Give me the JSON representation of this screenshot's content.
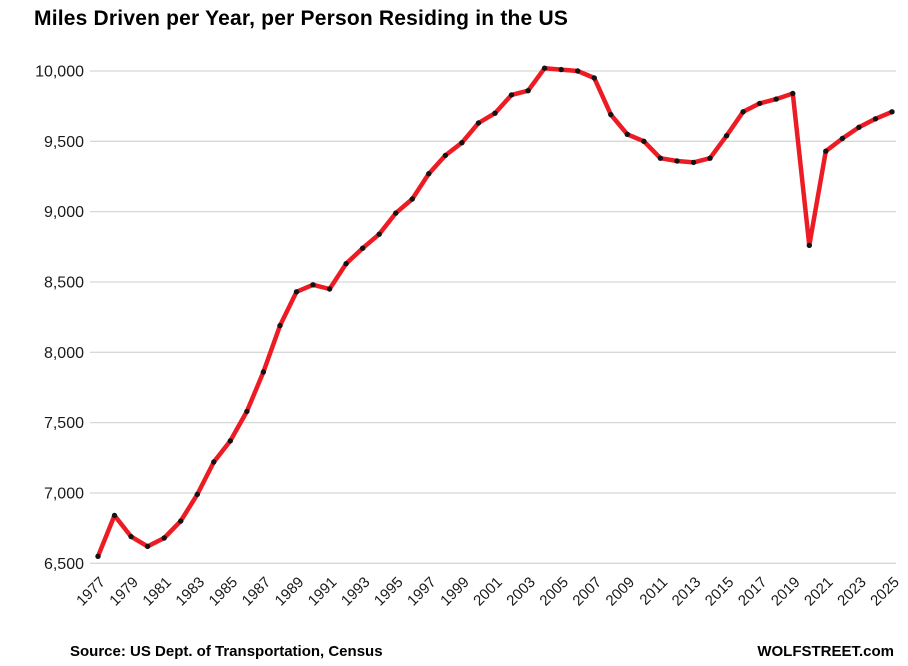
{
  "title": "Miles Driven per Year, per Person Residing in the US",
  "footer": {
    "source": "Source: US Dept. of Transportation, Census",
    "brand": "WOLFSTREET.com"
  },
  "colors": {
    "line": "#ed1c24",
    "marker": "#141414",
    "grid": "#d8d8d8",
    "axis_text": "#1a1a1a"
  },
  "chart_data": {
    "type": "line",
    "title": "Miles Driven per Year, per Person Residing in the US",
    "xlabel": "",
    "ylabel": "",
    "ylim": [
      6500,
      10000
    ],
    "yticks": [
      6500,
      7000,
      7500,
      8000,
      8500,
      9000,
      9500,
      10000
    ],
    "ytick_labels": [
      "6,500",
      "7,000",
      "7,500",
      "8,000",
      "8,500",
      "9,000",
      "9,500",
      "10,000"
    ],
    "xticks": [
      1977,
      1979,
      1981,
      1983,
      1985,
      1987,
      1989,
      1991,
      1993,
      1995,
      1997,
      1999,
      2001,
      2003,
      2005,
      2007,
      2009,
      2011,
      2013,
      2015,
      2017,
      2019,
      2021,
      2023,
      2025
    ],
    "grid": "horizontal",
    "legend_position": "none",
    "x": [
      1977,
      1978,
      1979,
      1980,
      1981,
      1982,
      1983,
      1984,
      1985,
      1986,
      1987,
      1988,
      1989,
      1990,
      1991,
      1992,
      1993,
      1994,
      1995,
      1996,
      1997,
      1998,
      1999,
      2000,
      2001,
      2002,
      2003,
      2004,
      2005,
      2006,
      2007,
      2008,
      2009,
      2010,
      2011,
      2012,
      2013,
      2014,
      2015,
      2016,
      2017,
      2018,
      2019,
      2020,
      2021,
      2022,
      2023,
      2024,
      2025
    ],
    "series": [
      {
        "name": "Miles driven per year per person",
        "marker": "black-dot",
        "values": [
          6550,
          6840,
          6690,
          6620,
          6680,
          6800,
          6990,
          7220,
          7370,
          7580,
          7860,
          8190,
          8430,
          8480,
          8450,
          8630,
          8740,
          8840,
          8990,
          9090,
          9270,
          9400,
          9490,
          9630,
          9700,
          9830,
          9860,
          10020,
          10010,
          10000,
          9950,
          9690,
          9550,
          9500,
          9380,
          9360,
          9350,
          9380,
          9540,
          9710,
          9770,
          9800,
          9840,
          8760,
          9430,
          9520,
          9600,
          9660,
          9710
        ]
      }
    ]
  }
}
